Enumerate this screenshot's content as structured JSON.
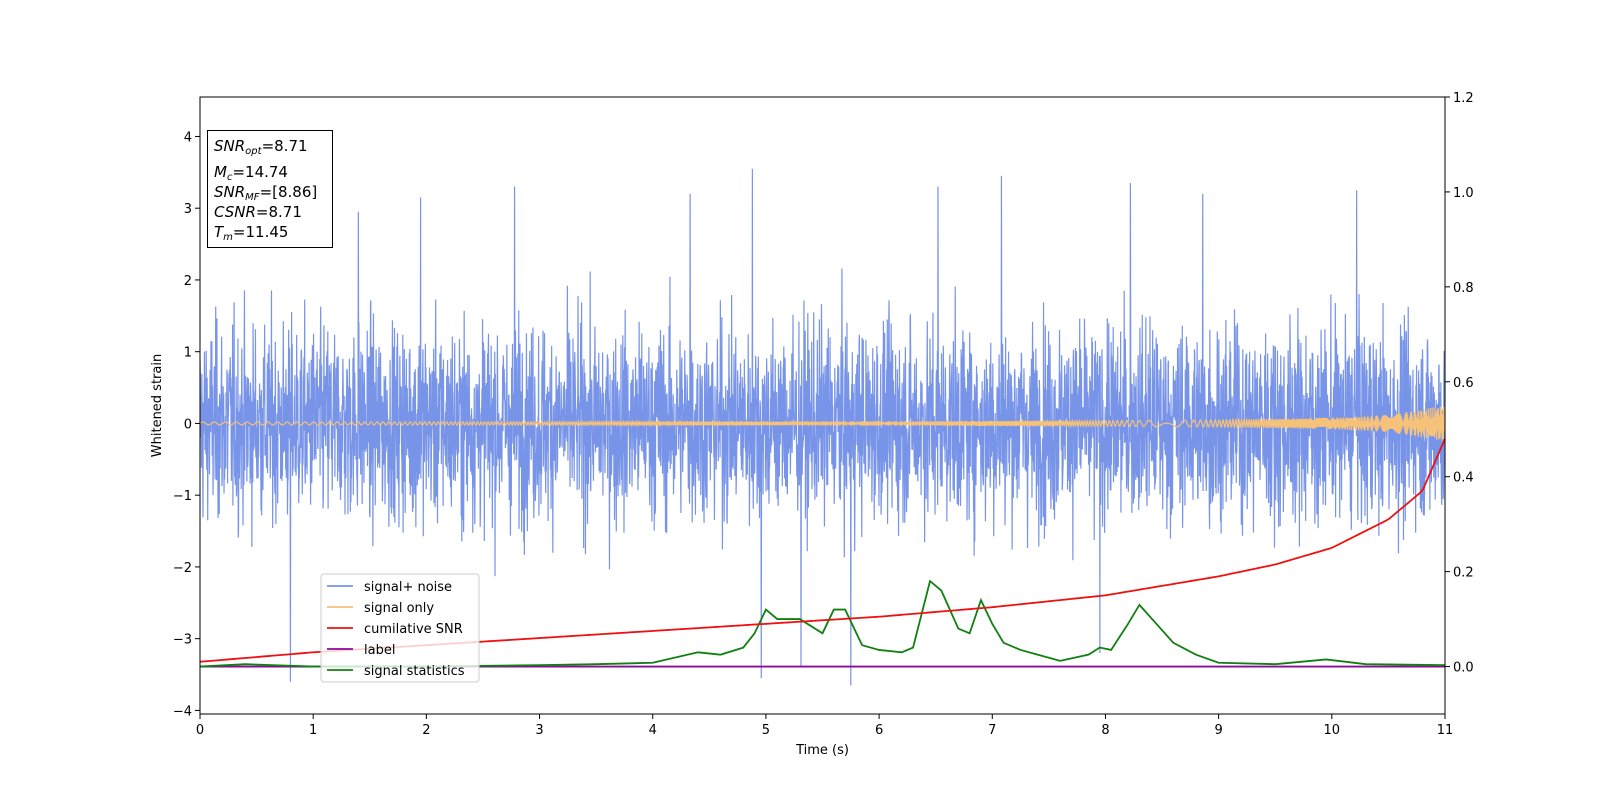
{
  "chart_data": {
    "type": "line",
    "xlabel": "Time (s)",
    "ylabel": "Whitened strain",
    "xlim": [
      0,
      11
    ],
    "ylim": [
      -4.05,
      4.55
    ],
    "y2lim": [
      -0.1,
      1.2
    ],
    "xticks": [
      "0",
      "1",
      "2",
      "3",
      "4",
      "5",
      "6",
      "7",
      "8",
      "9",
      "10",
      "11"
    ],
    "yticks": [
      "−4",
      "−3",
      "−2",
      "−1",
      "0",
      "1",
      "2",
      "3",
      "4"
    ],
    "y2ticks": [
      "0.0",
      "0.2",
      "0.4",
      "0.6",
      "0.8",
      "1.0",
      "1.2"
    ],
    "legend": {
      "placement": "lower-left",
      "entries": [
        {
          "name": "signal+ noise",
          "color": "#7794e8"
        },
        {
          "name": "signal only",
          "color": "#f6c178"
        },
        {
          "name": "cumilative SNR",
          "color": "#ee1111"
        },
        {
          "name": "label",
          "color": "#8a0a9a"
        },
        {
          "name": "signal statistics",
          "color": "#108010"
        }
      ]
    },
    "annotation": {
      "snr_opt": {
        "label": "SNR",
        "sub": "opt",
        "value": "=8.71"
      },
      "mc": {
        "label": "M",
        "sub": "c",
        "value": "=14.74"
      },
      "snr_mf": {
        "label": "SNR",
        "sub": "MF",
        "value": "=[8.86]"
      },
      "csnr": {
        "label": "CSNR",
        "value": "=8.71"
      },
      "tm": {
        "label": "T",
        "sub": "m",
        "value": "=11.45"
      }
    },
    "series": [
      {
        "name": "signal+ noise",
        "axis": "left",
        "color": "#7794e8",
        "description": "dense whitened noise, roughly -2.6 to 2.6 with spikes up to 3.5 and down to -3.6",
        "x": [
          0.8,
          1.4,
          1.95,
          2.78,
          4.33,
          4.88,
          4.96,
          5.31,
          5.75,
          6.52,
          7.08,
          7.95,
          8.22,
          8.86,
          10.22
        ],
        "y": [
          -3.6,
          2.95,
          3.15,
          3.3,
          3.2,
          3.55,
          -3.55,
          -3.4,
          -3.65,
          3.3,
          3.45,
          -3.2,
          3.35,
          3.2,
          3.25
        ]
      },
      {
        "name": "signal only",
        "axis": "left",
        "color": "#f6c178",
        "description": "chirp with growing amplitude",
        "x": [
          0,
          2,
          4,
          6,
          8,
          9,
          10,
          10.5,
          11
        ],
        "amplitude": [
          0.02,
          0.022,
          0.025,
          0.03,
          0.04,
          0.05,
          0.08,
          0.12,
          0.25
        ]
      },
      {
        "name": "cumilative SNR",
        "axis": "right",
        "color": "#ee1111",
        "x": [
          0,
          1,
          2,
          3,
          4,
          5,
          6,
          7,
          8,
          9,
          9.5,
          10,
          10.5,
          10.8,
          11
        ],
        "y": [
          0.01,
          0.03,
          0.045,
          0.06,
          0.075,
          0.09,
          0.105,
          0.125,
          0.15,
          0.19,
          0.215,
          0.25,
          0.31,
          0.37,
          0.48
        ]
      },
      {
        "name": "label",
        "axis": "right",
        "color": "#8a0a9a",
        "x": [
          0,
          11
        ],
        "y": [
          0.0,
          0.0
        ]
      },
      {
        "name": "signal statistics",
        "axis": "right",
        "color": "#108010",
        "x": [
          0,
          0.4,
          1,
          2,
          3,
          3.5,
          4,
          4.4,
          4.6,
          4.8,
          4.9,
          5.0,
          5.1,
          5.3,
          5.5,
          5.6,
          5.7,
          5.85,
          6.0,
          6.2,
          6.3,
          6.45,
          6.55,
          6.7,
          6.8,
          6.9,
          7.0,
          7.1,
          7.25,
          7.4,
          7.6,
          7.85,
          7.95,
          8.05,
          8.2,
          8.3,
          8.45,
          8.6,
          8.8,
          9.0,
          9.5,
          9.95,
          10.3,
          11
        ],
        "y": [
          0.0,
          0.005,
          0.0,
          0.0,
          0.003,
          0.005,
          0.008,
          0.03,
          0.025,
          0.04,
          0.07,
          0.12,
          0.1,
          0.1,
          0.07,
          0.12,
          0.12,
          0.045,
          0.035,
          0.03,
          0.04,
          0.18,
          0.16,
          0.08,
          0.07,
          0.14,
          0.09,
          0.05,
          0.035,
          0.025,
          0.012,
          0.025,
          0.04,
          0.035,
          0.09,
          0.13,
          0.09,
          0.05,
          0.025,
          0.008,
          0.005,
          0.015,
          0.005,
          0.003
        ]
      }
    ]
  }
}
